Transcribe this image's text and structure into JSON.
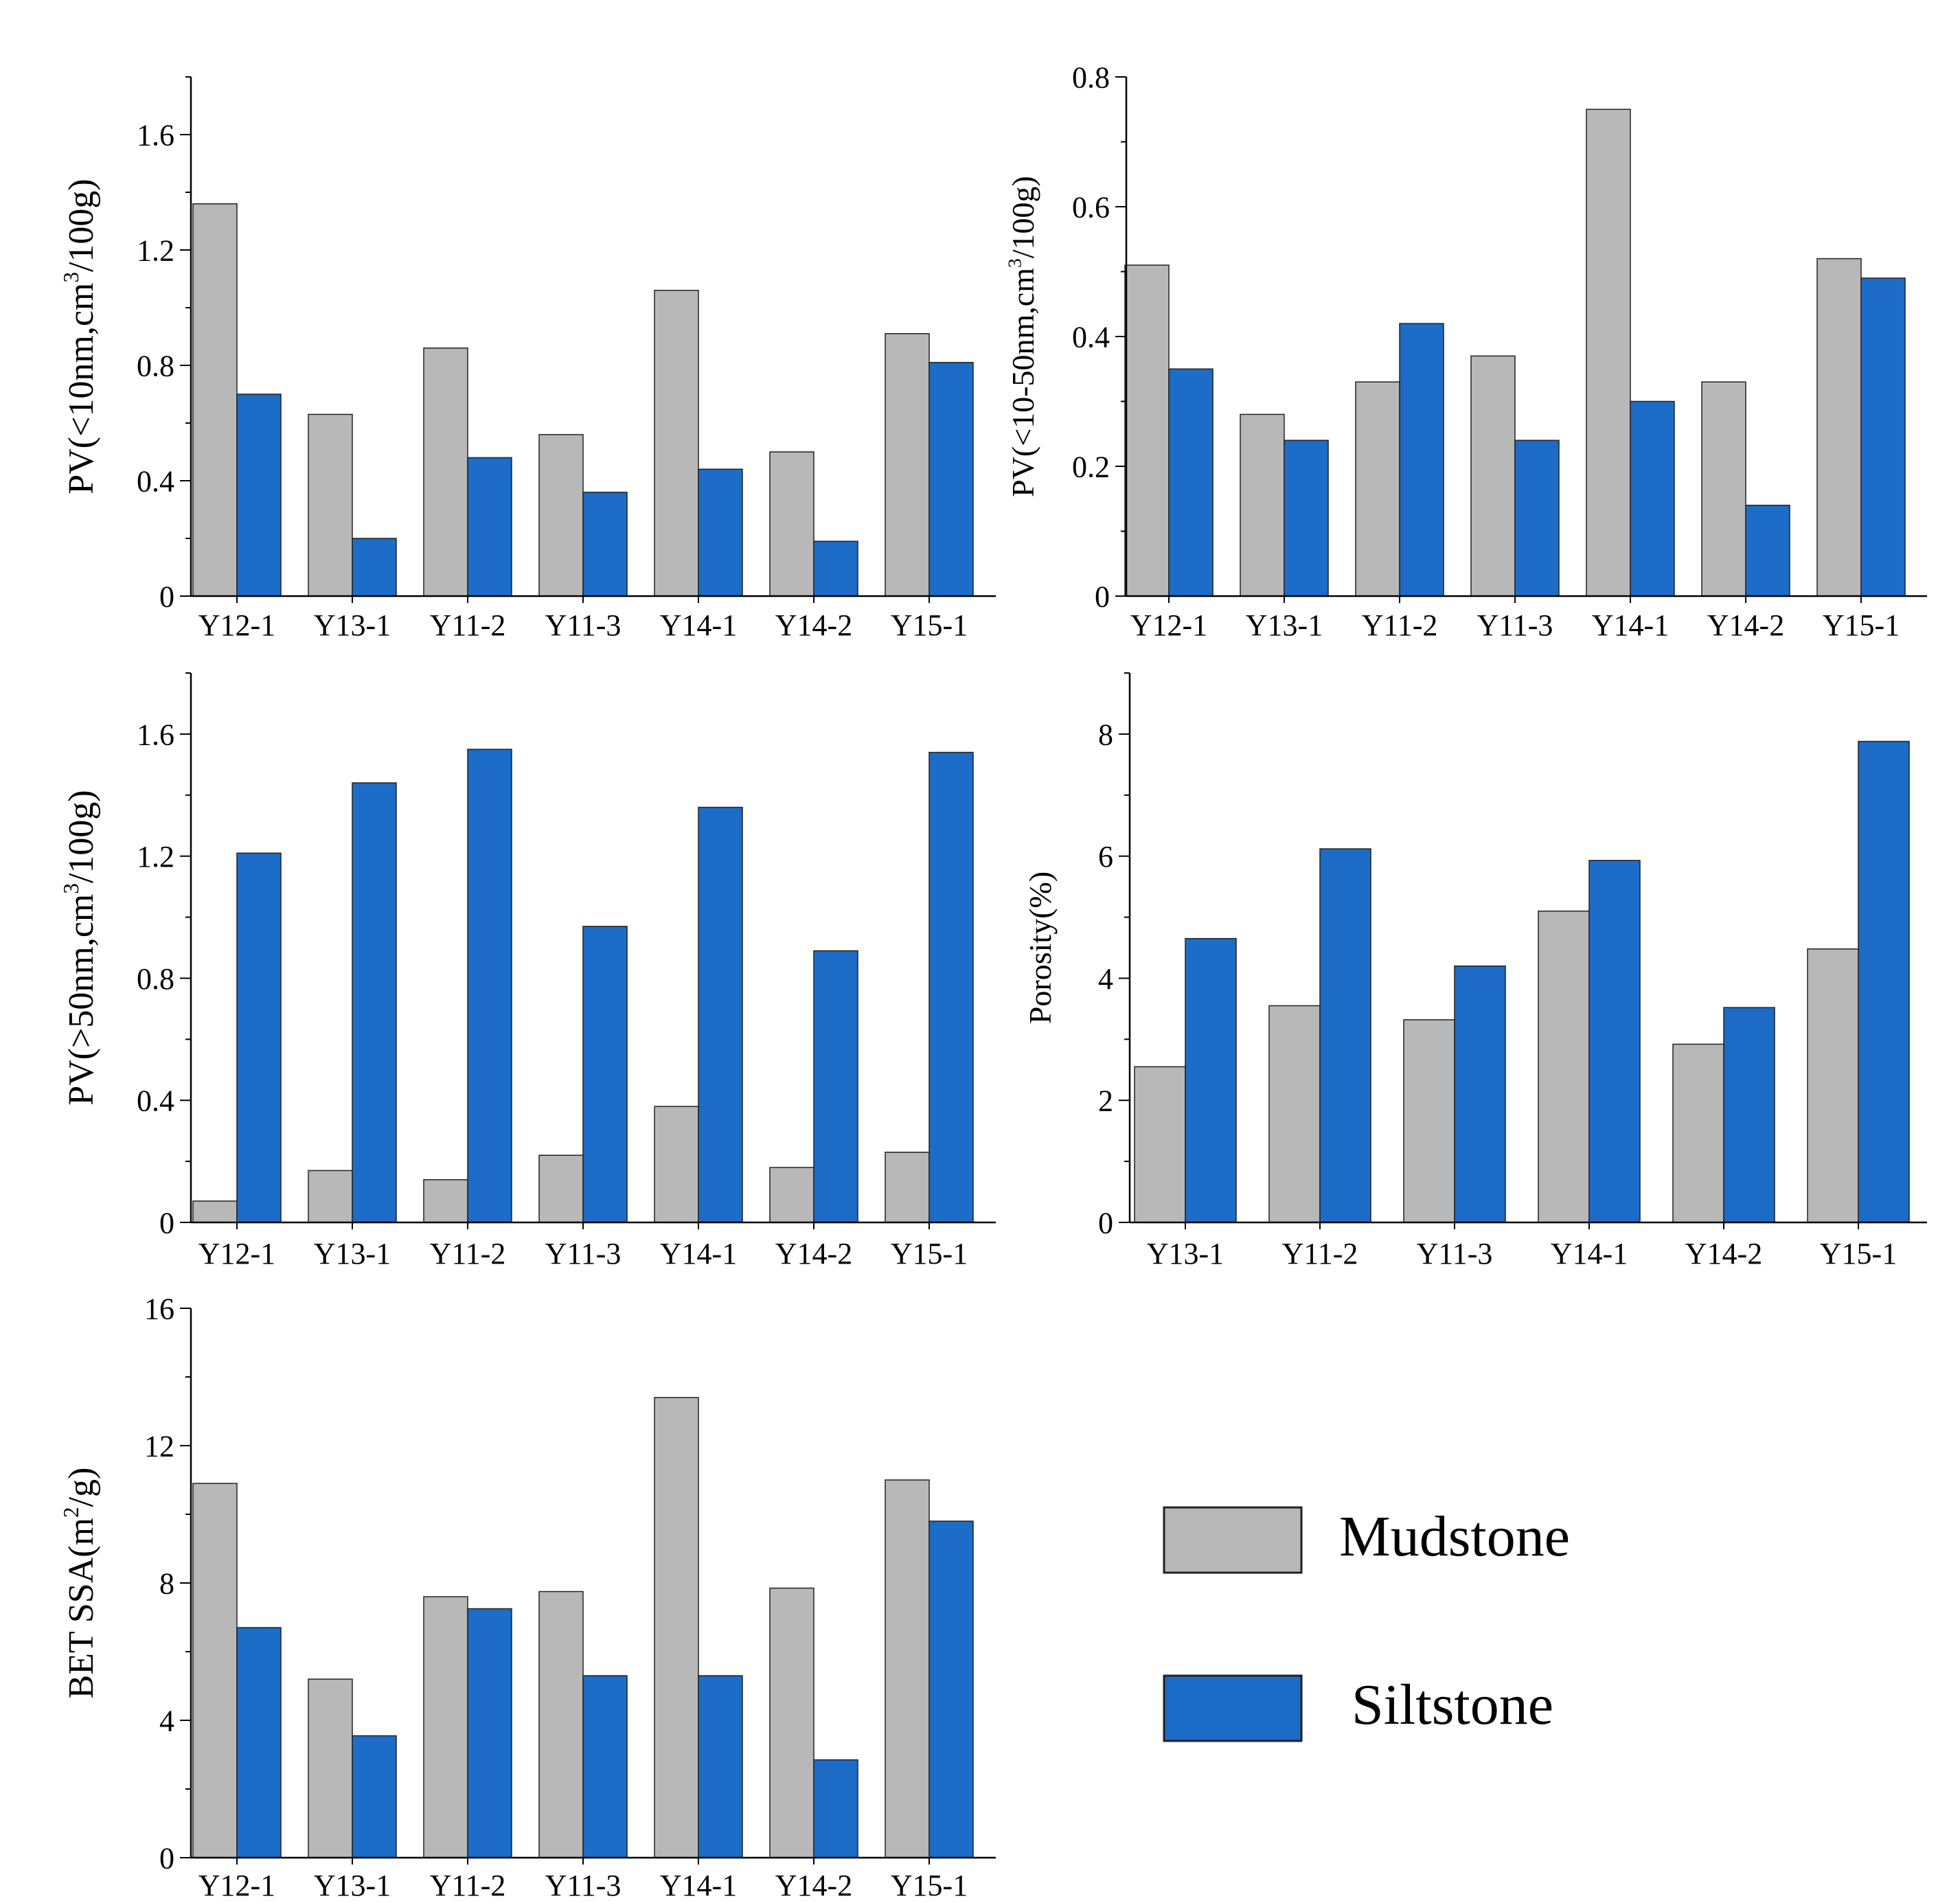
{
  "colors": {
    "mudstone": "#b8b8b8",
    "siltstone": "#1c6cc8",
    "axis": "#000000"
  },
  "legend": {
    "items": [
      {
        "label": "Mudstone",
        "color": "#b8b8b8"
      },
      {
        "label": "Siltstone",
        "color": "#1c6cc8"
      }
    ]
  },
  "chart_data": [
    {
      "type": "bar",
      "ylabel": "PV(<10nm,cm3/100g)",
      "ylabel_parts": {
        "before": "PV(<10nm,cm",
        "sup": "3",
        "after": "/100g)"
      },
      "ylim": [
        0,
        1.8
      ],
      "yticks": [
        0,
        0.4,
        0.8,
        1.2,
        1.6
      ],
      "ytick_labels": [
        "0",
        "0.4",
        "0.8",
        "1.2",
        "1.6"
      ],
      "categories": [
        "Y12-1",
        "Y13-1",
        "Y11-2",
        "Y11-3",
        "Y14-1",
        "Y14-2",
        "Y15-1"
      ],
      "series": [
        {
          "name": "Mudstone",
          "values": [
            1.36,
            0.63,
            0.86,
            0.56,
            1.06,
            0.5,
            0.91
          ]
        },
        {
          "name": "Siltstone",
          "values": [
            0.7,
            0.2,
            0.48,
            0.36,
            0.44,
            0.19,
            0.81
          ]
        }
      ]
    },
    {
      "type": "bar",
      "ylabel": "PV(<10-50nm,cm3/100g)",
      "ylabel_parts": {
        "before": "PV(<10-50nm,cm",
        "sup": "3",
        "after": "/100g)"
      },
      "ylim": [
        0,
        0.8
      ],
      "yticks": [
        0,
        0.2,
        0.4,
        0.6,
        0.8
      ],
      "ytick_labels": [
        "0",
        "0.2",
        "0.4",
        "0.6",
        "0.8"
      ],
      "categories": [
        "Y12-1",
        "Y13-1",
        "Y11-2",
        "Y11-3",
        "Y14-1",
        "Y14-2",
        "Y15-1"
      ],
      "series": [
        {
          "name": "Mudstone",
          "values": [
            0.51,
            0.28,
            0.33,
            0.37,
            0.75,
            0.33,
            0.52
          ]
        },
        {
          "name": "Siltstone",
          "values": [
            0.35,
            0.24,
            0.42,
            0.24,
            0.3,
            0.14,
            0.49
          ]
        }
      ]
    },
    {
      "type": "bar",
      "ylabel": "PV(>50nm,cm3/100g)",
      "ylabel_parts": {
        "before": "PV(>50nm,cm",
        "sup": "3",
        "after": "/100g)"
      },
      "ylim": [
        0,
        1.8
      ],
      "yticks": [
        0,
        0.4,
        0.8,
        1.2,
        1.6
      ],
      "ytick_labels": [
        "0",
        "0.4",
        "0.8",
        "1.2",
        "1.6"
      ],
      "categories": [
        "Y12-1",
        "Y13-1",
        "Y11-2",
        "Y11-3",
        "Y14-1",
        "Y14-2",
        "Y15-1"
      ],
      "series": [
        {
          "name": "Mudstone",
          "values": [
            0.07,
            0.17,
            0.14,
            0.22,
            0.38,
            0.18,
            0.23
          ]
        },
        {
          "name": "Siltstone",
          "values": [
            1.21,
            1.44,
            1.55,
            0.97,
            1.36,
            0.89,
            1.54
          ]
        }
      ]
    },
    {
      "type": "bar",
      "ylabel": "Porosity(%)",
      "ylabel_parts": {
        "before": "Porosity(%)",
        "sup": "",
        "after": ""
      },
      "ylim": [
        0,
        9
      ],
      "yticks": [
        0,
        2,
        4,
        6,
        8
      ],
      "ytick_labels": [
        "0",
        "2",
        "4",
        "6",
        "8"
      ],
      "categories": [
        "Y13-1",
        "Y11-2",
        "Y11-3",
        "Y14-1",
        "Y14-2",
        "Y15-1"
      ],
      "series": [
        {
          "name": "Mudstone",
          "values": [
            2.55,
            3.55,
            3.32,
            5.1,
            2.92,
            4.48
          ]
        },
        {
          "name": "Siltstone",
          "values": [
            4.65,
            6.12,
            4.2,
            5.93,
            3.52,
            7.88
          ]
        }
      ]
    },
    {
      "type": "bar",
      "ylabel": "BET SSA(m2/g)",
      "ylabel_parts": {
        "before": "BET SSA(m",
        "sup": "2",
        "after": "/g)"
      },
      "ylim": [
        0,
        16
      ],
      "yticks": [
        0,
        4,
        8,
        12,
        16
      ],
      "ytick_labels": [
        "0",
        "4",
        "8",
        "12",
        "16"
      ],
      "categories": [
        "Y12-1",
        "Y13-1",
        "Y11-2",
        "Y11-3",
        "Y14-1",
        "Y14-2",
        "Y15-1"
      ],
      "series": [
        {
          "name": "Mudstone",
          "values": [
            10.9,
            5.2,
            7.6,
            7.75,
            13.4,
            7.85,
            11.0
          ]
        },
        {
          "name": "Siltstone",
          "values": [
            6.7,
            3.55,
            7.25,
            5.3,
            5.3,
            2.85,
            9.8
          ]
        }
      ]
    }
  ]
}
